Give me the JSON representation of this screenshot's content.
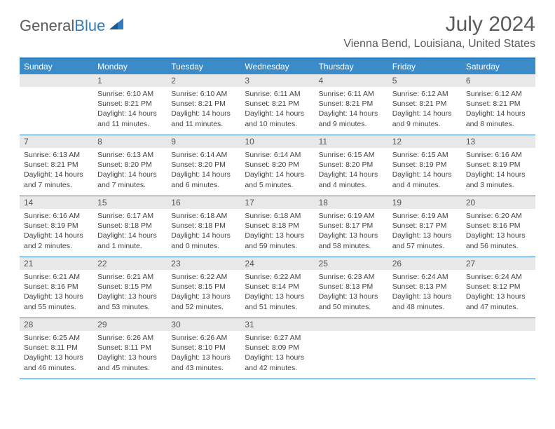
{
  "logo": {
    "part1": "General",
    "part2": "Blue"
  },
  "title": "July 2024",
  "location": "Vienna Bend, Louisiana, United States",
  "colors": {
    "header_bg": "#3b8bc8",
    "border": "#2f7bbf",
    "daynum_bg": "#e8e8e8",
    "text": "#444444"
  },
  "weekdays": [
    "Sunday",
    "Monday",
    "Tuesday",
    "Wednesday",
    "Thursday",
    "Friday",
    "Saturday"
  ],
  "weeks": [
    [
      {
        "n": "",
        "lines": []
      },
      {
        "n": "1",
        "lines": [
          "Sunrise: 6:10 AM",
          "Sunset: 8:21 PM",
          "Daylight: 14 hours",
          "and 11 minutes."
        ]
      },
      {
        "n": "2",
        "lines": [
          "Sunrise: 6:10 AM",
          "Sunset: 8:21 PM",
          "Daylight: 14 hours",
          "and 11 minutes."
        ]
      },
      {
        "n": "3",
        "lines": [
          "Sunrise: 6:11 AM",
          "Sunset: 8:21 PM",
          "Daylight: 14 hours",
          "and 10 minutes."
        ]
      },
      {
        "n": "4",
        "lines": [
          "Sunrise: 6:11 AM",
          "Sunset: 8:21 PM",
          "Daylight: 14 hours",
          "and 9 minutes."
        ]
      },
      {
        "n": "5",
        "lines": [
          "Sunrise: 6:12 AM",
          "Sunset: 8:21 PM",
          "Daylight: 14 hours",
          "and 9 minutes."
        ]
      },
      {
        "n": "6",
        "lines": [
          "Sunrise: 6:12 AM",
          "Sunset: 8:21 PM",
          "Daylight: 14 hours",
          "and 8 minutes."
        ]
      }
    ],
    [
      {
        "n": "7",
        "lines": [
          "Sunrise: 6:13 AM",
          "Sunset: 8:21 PM",
          "Daylight: 14 hours",
          "and 7 minutes."
        ]
      },
      {
        "n": "8",
        "lines": [
          "Sunrise: 6:13 AM",
          "Sunset: 8:20 PM",
          "Daylight: 14 hours",
          "and 7 minutes."
        ]
      },
      {
        "n": "9",
        "lines": [
          "Sunrise: 6:14 AM",
          "Sunset: 8:20 PM",
          "Daylight: 14 hours",
          "and 6 minutes."
        ]
      },
      {
        "n": "10",
        "lines": [
          "Sunrise: 6:14 AM",
          "Sunset: 8:20 PM",
          "Daylight: 14 hours",
          "and 5 minutes."
        ]
      },
      {
        "n": "11",
        "lines": [
          "Sunrise: 6:15 AM",
          "Sunset: 8:20 PM",
          "Daylight: 14 hours",
          "and 4 minutes."
        ]
      },
      {
        "n": "12",
        "lines": [
          "Sunrise: 6:15 AM",
          "Sunset: 8:19 PM",
          "Daylight: 14 hours",
          "and 4 minutes."
        ]
      },
      {
        "n": "13",
        "lines": [
          "Sunrise: 6:16 AM",
          "Sunset: 8:19 PM",
          "Daylight: 14 hours",
          "and 3 minutes."
        ]
      }
    ],
    [
      {
        "n": "14",
        "lines": [
          "Sunrise: 6:16 AM",
          "Sunset: 8:19 PM",
          "Daylight: 14 hours",
          "and 2 minutes."
        ]
      },
      {
        "n": "15",
        "lines": [
          "Sunrise: 6:17 AM",
          "Sunset: 8:18 PM",
          "Daylight: 14 hours",
          "and 1 minute."
        ]
      },
      {
        "n": "16",
        "lines": [
          "Sunrise: 6:18 AM",
          "Sunset: 8:18 PM",
          "Daylight: 14 hours",
          "and 0 minutes."
        ]
      },
      {
        "n": "17",
        "lines": [
          "Sunrise: 6:18 AM",
          "Sunset: 8:18 PM",
          "Daylight: 13 hours",
          "and 59 minutes."
        ]
      },
      {
        "n": "18",
        "lines": [
          "Sunrise: 6:19 AM",
          "Sunset: 8:17 PM",
          "Daylight: 13 hours",
          "and 58 minutes."
        ]
      },
      {
        "n": "19",
        "lines": [
          "Sunrise: 6:19 AM",
          "Sunset: 8:17 PM",
          "Daylight: 13 hours",
          "and 57 minutes."
        ]
      },
      {
        "n": "20",
        "lines": [
          "Sunrise: 6:20 AM",
          "Sunset: 8:16 PM",
          "Daylight: 13 hours",
          "and 56 minutes."
        ]
      }
    ],
    [
      {
        "n": "21",
        "lines": [
          "Sunrise: 6:21 AM",
          "Sunset: 8:16 PM",
          "Daylight: 13 hours",
          "and 55 minutes."
        ]
      },
      {
        "n": "22",
        "lines": [
          "Sunrise: 6:21 AM",
          "Sunset: 8:15 PM",
          "Daylight: 13 hours",
          "and 53 minutes."
        ]
      },
      {
        "n": "23",
        "lines": [
          "Sunrise: 6:22 AM",
          "Sunset: 8:15 PM",
          "Daylight: 13 hours",
          "and 52 minutes."
        ]
      },
      {
        "n": "24",
        "lines": [
          "Sunrise: 6:22 AM",
          "Sunset: 8:14 PM",
          "Daylight: 13 hours",
          "and 51 minutes."
        ]
      },
      {
        "n": "25",
        "lines": [
          "Sunrise: 6:23 AM",
          "Sunset: 8:13 PM",
          "Daylight: 13 hours",
          "and 50 minutes."
        ]
      },
      {
        "n": "26",
        "lines": [
          "Sunrise: 6:24 AM",
          "Sunset: 8:13 PM",
          "Daylight: 13 hours",
          "and 48 minutes."
        ]
      },
      {
        "n": "27",
        "lines": [
          "Sunrise: 6:24 AM",
          "Sunset: 8:12 PM",
          "Daylight: 13 hours",
          "and 47 minutes."
        ]
      }
    ],
    [
      {
        "n": "28",
        "lines": [
          "Sunrise: 6:25 AM",
          "Sunset: 8:11 PM",
          "Daylight: 13 hours",
          "and 46 minutes."
        ]
      },
      {
        "n": "29",
        "lines": [
          "Sunrise: 6:26 AM",
          "Sunset: 8:11 PM",
          "Daylight: 13 hours",
          "and 45 minutes."
        ]
      },
      {
        "n": "30",
        "lines": [
          "Sunrise: 6:26 AM",
          "Sunset: 8:10 PM",
          "Daylight: 13 hours",
          "and 43 minutes."
        ]
      },
      {
        "n": "31",
        "lines": [
          "Sunrise: 6:27 AM",
          "Sunset: 8:09 PM",
          "Daylight: 13 hours",
          "and 42 minutes."
        ]
      },
      {
        "n": "",
        "lines": []
      },
      {
        "n": "",
        "lines": []
      },
      {
        "n": "",
        "lines": []
      }
    ]
  ]
}
